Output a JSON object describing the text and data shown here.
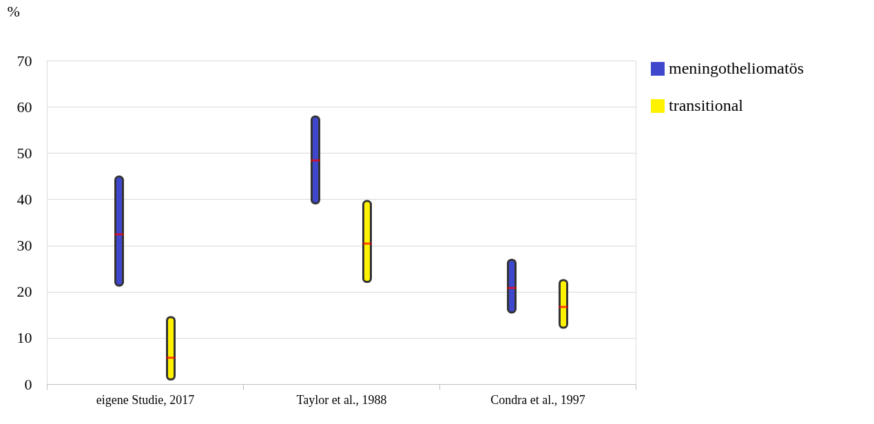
{
  "chart_data": {
    "type": "box",
    "ylabel": "%",
    "categories": [
      "eigene Studie, 2017",
      "Taylor et al., 1988",
      "Condra et al., 1997"
    ],
    "series": [
      {
        "name": "meningotheliomatös",
        "color": "#3f48cc",
        "boxes": [
          {
            "low": 21.3,
            "q1": 21.3,
            "median": 32.4,
            "q3": 44.9,
            "high": 44.9
          },
          {
            "low": 39.1,
            "q1": 39.1,
            "median": 48.4,
            "q3": 57.9,
            "high": 57.9
          },
          {
            "low": 15.5,
            "q1": 15.5,
            "median": 20.8,
            "q3": 26.9,
            "high": 26.9
          }
        ]
      },
      {
        "name": "transitional",
        "color": "#fff200",
        "boxes": [
          {
            "low": 1.0,
            "q1": 1.0,
            "median": 5.7,
            "q3": 14.5,
            "high": 14.5
          },
          {
            "low": 22.1,
            "q1": 22.1,
            "median": 30.4,
            "q3": 39.6,
            "high": 39.6
          },
          {
            "low": 12.2,
            "q1": 12.2,
            "median": 16.7,
            "q3": 22.5,
            "high": 22.5
          }
        ]
      }
    ],
    "ylim": [
      0,
      70
    ],
    "yticks": [
      0,
      10,
      20,
      30,
      40,
      50,
      60,
      70
    ],
    "grid": "y",
    "legend": "top right"
  }
}
